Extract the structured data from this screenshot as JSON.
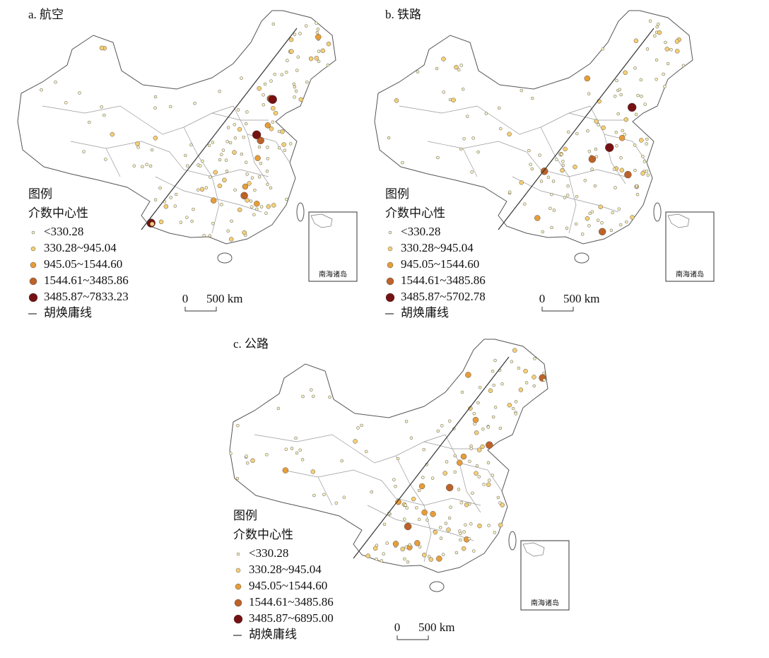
{
  "panels": [
    {
      "title": "a. 航空",
      "legend": {
        "title": "图例",
        "subtitle": "介数中心性",
        "classes": [
          {
            "label": "<330.28",
            "color": "#fcf3c0"
          },
          {
            "label": "330.28~945.04",
            "color": "#f6cf74"
          },
          {
            "label": "945.05~1544.60",
            "color": "#e79d38"
          },
          {
            "label": "1544.61~3485.86",
            "color": "#bd6228"
          },
          {
            "label": "3485.87~7833.23",
            "color": "#761011"
          }
        ],
        "line": "胡焕庸线"
      },
      "scale": {
        "zero": "0",
        "distance": "500 km"
      },
      "inset": "南海诸岛"
    },
    {
      "title": "b. 铁路",
      "legend": {
        "title": "图例",
        "subtitle": "介数中心性",
        "classes": [
          {
            "label": "<330.28",
            "color": "#fcf3c0"
          },
          {
            "label": "330.28~945.04",
            "color": "#f6cf74"
          },
          {
            "label": "945.05~1544.60",
            "color": "#e79d38"
          },
          {
            "label": "1544.61~3485.86",
            "color": "#bd6228"
          },
          {
            "label": "3485.87~5702.78",
            "color": "#761011"
          }
        ],
        "line": "胡焕庸线"
      },
      "scale": {
        "zero": "0",
        "distance": "500 km"
      },
      "inset": "南海诸岛"
    },
    {
      "title": "c. 公路",
      "legend": {
        "title": "图例",
        "subtitle": "介数中心性",
        "classes": [
          {
            "label": "<330.28",
            "color": "#fcf3c0"
          },
          {
            "label": "330.28~945.04",
            "color": "#f6cf74"
          },
          {
            "label": "945.05~1544.60",
            "color": "#e79d38"
          },
          {
            "label": "1544.61~3485.86",
            "color": "#bd6228"
          },
          {
            "label": "3485.87~6895.00",
            "color": "#761011"
          }
        ],
        "line": "胡焕庸线"
      },
      "scale": {
        "zero": "0",
        "distance": "500 km"
      },
      "inset": "南海诸岛"
    }
  ]
}
